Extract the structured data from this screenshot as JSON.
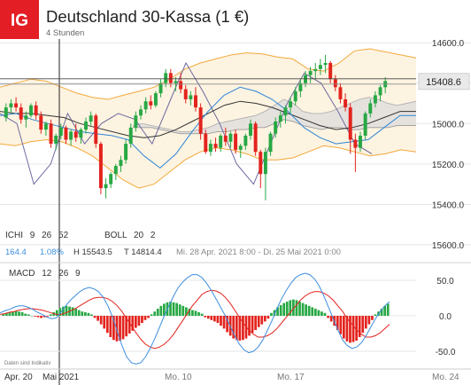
{
  "header": {
    "logo_text": "IG",
    "title": "Deutschland 30-Kassa (1 €)",
    "subtitle": "4 Stunden"
  },
  "colors": {
    "logo_bg": "#e31e24",
    "up_candle": "#27a844",
    "down_candle": "#e3231d",
    "boll_line": "#f2a93b",
    "boll_fill": "#fdf3e1",
    "kumo_fill": "#dcdcdc",
    "tenkan": "#2f86d6",
    "kijun": "#333333",
    "chikou": "#6d6a9e",
    "macd_line": "#3d8ede",
    "signal_line": "#e3231d",
    "price_tag": "#e9e9e9"
  },
  "price_panel": {
    "current_price": "15408.6",
    "yticks": [
      "15600.0",
      "15400.0",
      "15200.0",
      "15000.0",
      "14800.0",
      "14600.0"
    ]
  },
  "indicators": {
    "ichi_label": "ICHI",
    "ichi_params": [
      "9",
      "26",
      "52"
    ],
    "boll_label": "BOLL",
    "boll_params": [
      "20",
      "2"
    ],
    "stats": {
      "change": "164.4",
      "change_pct": "1.08%",
      "high": "H 15543.5",
      "low": "T 14814.4",
      "range": "Mi. 28 Apr. 2021 8:00 - Di. 25 Mai 2021 0:00"
    }
  },
  "macd_panel": {
    "label": "MACD",
    "params": [
      "12",
      "26",
      "9"
    ],
    "yticks": [
      "50.0",
      "0.0",
      "-50.0"
    ],
    "footnote": "Daten sind Indikativ"
  },
  "xaxis": {
    "labels": [
      "Apr. 20",
      "Mai 2021",
      "Mo. 10",
      "Mo. 17",
      "Mo. 24"
    ]
  },
  "chart_data": [
    {
      "type": "candlestick",
      "title": "Deutschland 30-Kassa (1 €)",
      "timeframe": "4 Stunden",
      "ylim": [
        14560,
        15680
      ],
      "yticks": [
        14600,
        14800,
        15000,
        15200,
        15400,
        15600
      ],
      "last": 15408.6,
      "high": 15543.5,
      "low": 14814.4,
      "candles": [
        [
          15230,
          15300,
          15210,
          15280
        ],
        [
          15280,
          15320,
          15250,
          15300
        ],
        [
          15300,
          15330,
          15260,
          15280
        ],
        [
          15280,
          15300,
          15200,
          15220
        ],
        [
          15220,
          15260,
          15180,
          15240
        ],
        [
          15240,
          15300,
          15230,
          15290
        ],
        [
          15290,
          15310,
          15220,
          15240
        ],
        [
          15240,
          15260,
          15150,
          15170
        ],
        [
          15170,
          15210,
          15140,
          15200
        ],
        [
          15200,
          15220,
          15080,
          15100
        ],
        [
          15100,
          15150,
          15070,
          15140
        ],
        [
          15140,
          15200,
          15120,
          15180
        ],
        [
          15180,
          15190,
          15100,
          15120
        ],
        [
          15120,
          15170,
          15090,
          15160
        ],
        [
          15160,
          15200,
          15110,
          15130
        ],
        [
          15130,
          15180,
          15100,
          15170
        ],
        [
          15170,
          15230,
          15150,
          15210
        ],
        [
          15210,
          15260,
          15190,
          15240
        ],
        [
          15240,
          15250,
          15080,
          15100
        ],
        [
          15100,
          15110,
          14850,
          14880
        ],
        [
          14880,
          14930,
          14830,
          14900
        ],
        [
          14900,
          14960,
          14880,
          14950
        ],
        [
          14950,
          15000,
          14920,
          14990
        ],
        [
          14990,
          15040,
          14960,
          15020
        ],
        [
          15020,
          15120,
          15000,
          15100
        ],
        [
          15100,
          15200,
          15080,
          15180
        ],
        [
          15180,
          15260,
          15160,
          15240
        ],
        [
          15240,
          15290,
          15220,
          15270
        ],
        [
          15270,
          15330,
          15250,
          15310
        ],
        [
          15310,
          15340,
          15270,
          15290
        ],
        [
          15290,
          15360,
          15280,
          15350
        ],
        [
          15350,
          15420,
          15330,
          15400
        ],
        [
          15400,
          15470,
          15380,
          15450
        ],
        [
          15450,
          15470,
          15380,
          15400
        ],
        [
          15400,
          15430,
          15360,
          15410
        ],
        [
          15410,
          15450,
          15350,
          15370
        ],
        [
          15370,
          15390,
          15300,
          15320
        ],
        [
          15320,
          15360,
          15290,
          15340
        ],
        [
          15340,
          15380,
          15260,
          15280
        ],
        [
          15280,
          15300,
          15120,
          15150
        ],
        [
          15150,
          15170,
          15050,
          15060
        ],
        [
          15060,
          15120,
          15040,
          15100
        ],
        [
          15100,
          15130,
          15060,
          15080
        ],
        [
          15080,
          15150,
          15060,
          15140
        ],
        [
          15140,
          15180,
          15090,
          15110
        ],
        [
          15110,
          15160,
          15080,
          15150
        ],
        [
          15150,
          15170,
          15050,
          15070
        ],
        [
          15070,
          15100,
          15030,
          15090
        ],
        [
          15090,
          15150,
          15070,
          15140
        ],
        [
          15140,
          15220,
          15120,
          15200
        ],
        [
          15200,
          15210,
          15040,
          15060
        ],
        [
          15060,
          15070,
          14880,
          14950
        ],
        [
          14950,
          15080,
          14820,
          15060
        ],
        [
          15060,
          15160,
          15040,
          15150
        ],
        [
          15150,
          15230,
          15130,
          15210
        ],
        [
          15210,
          15260,
          15180,
          15240
        ],
        [
          15240,
          15290,
          15200,
          15280
        ],
        [
          15280,
          15330,
          15250,
          15310
        ],
        [
          15310,
          15380,
          15290,
          15360
        ],
        [
          15360,
          15420,
          15330,
          15400
        ],
        [
          15400,
          15460,
          15380,
          15440
        ],
        [
          15440,
          15480,
          15400,
          15460
        ],
        [
          15460,
          15500,
          15420,
          15470
        ],
        [
          15470,
          15520,
          15440,
          15490
        ],
        [
          15490,
          15540,
          15450,
          15500
        ],
        [
          15500,
          15510,
          15400,
          15420
        ],
        [
          15420,
          15440,
          15360,
          15380
        ],
        [
          15380,
          15400,
          15300,
          15320
        ],
        [
          15320,
          15350,
          15260,
          15280
        ],
        [
          15280,
          15300,
          15050,
          15120
        ],
        [
          15120,
          15150,
          14960,
          15080
        ],
        [
          15080,
          15160,
          15060,
          15140
        ],
        [
          15140,
          15260,
          15120,
          15250
        ],
        [
          15250,
          15320,
          15230,
          15300
        ],
        [
          15300,
          15360,
          15280,
          15340
        ],
        [
          15340,
          15390,
          15310,
          15380
        ],
        [
          15380,
          15430,
          15350,
          15410
        ]
      ],
      "bollinger": {
        "upper": [
          15380,
          15400,
          15420,
          15410,
          15380,
          15350,
          15330,
          15320,
          15340,
          15360,
          15380,
          15420,
          15470,
          15500,
          15520,
          15540,
          15550,
          15545,
          15530,
          15520,
          15470,
          15460,
          15500,
          15560,
          15570,
          15555,
          15540,
          15525
        ],
        "lower": [
          15100,
          15090,
          15110,
          15120,
          15110,
          15080,
          15040,
          14980,
          14920,
          14880,
          14900,
          14960,
          15020,
          15060,
          15080,
          15070,
          15050,
          15020,
          15020,
          15030,
          15060,
          15090,
          15080,
          15060,
          15040,
          15050,
          15070,
          15060
        ]
      },
      "ichimoku": {
        "tenkan": [
          15240,
          15250,
          15220,
          15200,
          15180,
          15160,
          15150,
          15140,
          15120,
          15040,
          14980,
          15050,
          15160,
          15260,
          15340,
          15380,
          15360,
          15320,
          15260,
          15180,
          15130,
          15100,
          15110,
          15120,
          15180,
          15240,
          15240
        ],
        "kijun": [
          15260,
          15250,
          15250,
          15240,
          15230,
          15200,
          15180,
          15160,
          15140,
          15130,
          15140,
          15170,
          15210,
          15250,
          15290,
          15310,
          15300,
          15280,
          15250,
          15220,
          15190,
          15170,
          15180,
          15200,
          15230,
          15260,
          15260
        ],
        "chikou": [
          15250,
          15200,
          14900,
          15000,
          15250,
          15100,
          15200,
          15250,
          15220,
          15100,
          15300,
          15500,
          15360,
          15200,
          15000,
          14900,
          15100,
          15300,
          15450,
          15400,
          15260,
          15100,
          15050
        ],
        "span_a": [
          15190,
          15200,
          15190,
          15180,
          15170,
          15160,
          15160,
          15170,
          15180,
          15200,
          15210,
          15220,
          15230,
          15240,
          15260,
          15290,
          15320,
          15300,
          15260,
          15250,
          15250,
          15260,
          15280,
          15300,
          15320,
          15330,
          15320,
          15300,
          15290,
          15300,
          15310
        ],
        "span_b": [
          15180,
          15180,
          15180,
          15170,
          15160,
          15150,
          15150,
          15150,
          15150,
          15160,
          15160,
          15170,
          15170,
          15180,
          15180,
          15200,
          15220,
          15210,
          15190,
          15180,
          15170,
          15180,
          15180,
          15170,
          15170,
          15180,
          15180,
          15180,
          15190,
          15190,
          15190
        ]
      }
    },
    {
      "type": "bar",
      "title": "MACD 12 26 9",
      "ylim": [
        -70,
        70
      ],
      "yticks": [
        50,
        0,
        -50
      ],
      "histogram": [
        3,
        4,
        5,
        6,
        7,
        6,
        5,
        3,
        2,
        0,
        -1,
        -2,
        -3,
        -2,
        -1,
        2,
        5,
        8,
        11,
        13,
        14,
        13,
        12,
        10,
        8,
        6,
        5,
        4,
        2,
        -3,
        -7,
        -12,
        -18,
        -24,
        -30,
        -34,
        -36,
        -35,
        -33,
        -29,
        -25,
        -21,
        -17,
        -14,
        -10,
        -6,
        -3,
        2,
        6,
        10,
        14,
        17,
        19,
        20,
        19,
        18,
        16,
        14,
        12,
        10,
        8,
        7,
        5,
        3,
        -2,
        -4,
        -6,
        -8,
        -10,
        -14,
        -18,
        -23,
        -28,
        -32,
        -34,
        -35,
        -34,
        -32,
        -28,
        -24,
        -20,
        -16,
        -12,
        -8,
        -4,
        4,
        8,
        12,
        15,
        18,
        20,
        22,
        23,
        22,
        20,
        18,
        16,
        14,
        12,
        10,
        8,
        6,
        4,
        -3,
        -8,
        -14,
        -20,
        -26,
        -32,
        -36,
        -38,
        -37,
        -35,
        -30,
        -24,
        -18,
        -12,
        -6,
        2,
        6,
        10,
        14,
        17
      ],
      "macd": [
        4,
        7,
        9,
        12,
        14,
        14,
        12,
        9,
        5,
        2,
        -2,
        -4,
        -3,
        5,
        14,
        22,
        28,
        34,
        38,
        40,
        38,
        34,
        26,
        14,
        -2,
        -22,
        -42,
        -58,
        -66,
        -68,
        -66,
        -58,
        -46,
        -32,
        -16,
        0,
        14,
        28,
        40,
        48,
        54,
        58,
        58,
        54,
        46,
        36,
        24,
        12,
        0,
        -14,
        -28,
        -40,
        -48,
        -52,
        -50,
        -44,
        -34,
        -20,
        -6,
        10,
        24,
        36,
        46,
        54,
        58,
        60,
        58,
        52,
        42,
        28,
        12,
        -4,
        -20,
        -34,
        -42,
        -46,
        -44,
        -38,
        -28,
        -16,
        -4,
        6,
        14,
        20
      ],
      "signal": [
        2,
        3,
        5,
        6,
        8,
        9,
        10,
        10,
        9,
        8,
        6,
        4,
        2,
        2,
        4,
        7,
        10,
        14,
        18,
        22,
        25,
        26,
        26,
        24,
        20,
        14,
        6,
        -4,
        -14,
        -24,
        -33,
        -40,
        -44,
        -46,
        -44,
        -40,
        -34,
        -26,
        -16,
        -6,
        4,
        14,
        22,
        30,
        34,
        36,
        35,
        32,
        26,
        18,
        8,
        -2,
        -12,
        -20,
        -26,
        -30,
        -30,
        -28,
        -24,
        -18,
        -10,
        -2,
        6,
        14,
        22,
        28,
        32,
        34,
        34,
        32,
        28,
        22,
        14,
        6,
        -4,
        -12,
        -20,
        -26,
        -30,
        -30,
        -28,
        -24,
        -18,
        -12
      ]
    }
  ]
}
